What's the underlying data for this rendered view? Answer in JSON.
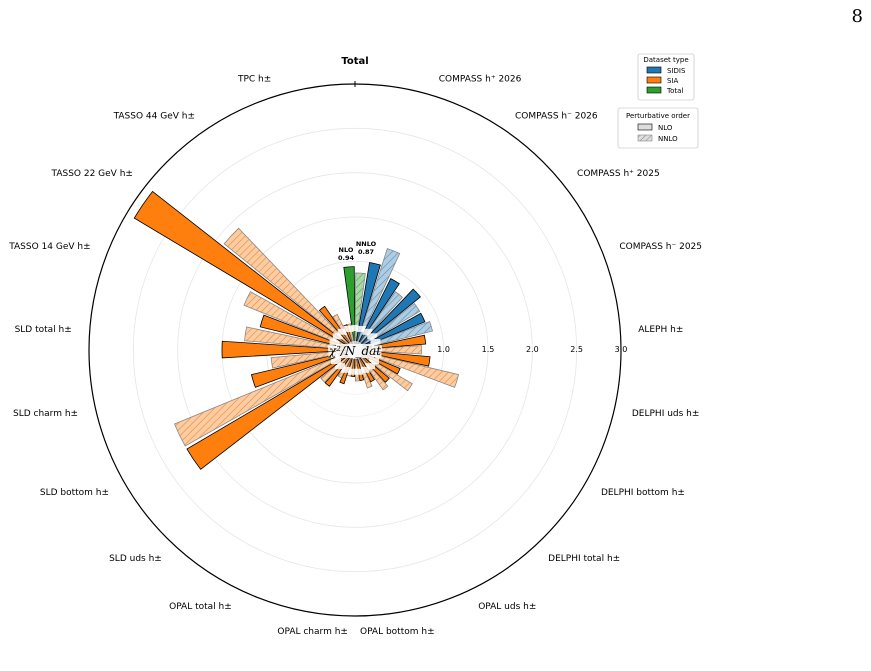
{
  "page_number": "8",
  "chart_data": {
    "type": "bar",
    "subtype": "polar-bar",
    "title": "Total",
    "center_label": "χ²/N_dat",
    "radial_ticks": [
      "1.0",
      "1.5",
      "2.0",
      "2.5",
      "3.0"
    ],
    "radial_tick_values": [
      1.0,
      1.5,
      2.0,
      2.5,
      3.0
    ],
    "rmax": 3.0,
    "categories": [
      "Total",
      "COMPASS h⁺ 2026",
      "COMPASS h⁻ 2026",
      "COMPASS h⁺ 2025",
      "COMPASS h⁻ 2025",
      "ALEPH h±",
      "DELPHI uds h±",
      "DELPHI bottom h±",
      "DELPHI total h±",
      "OPAL uds h±",
      "OPAL bottom h±",
      "OPAL charm h±",
      "OPAL total h±",
      "SLD uds h±",
      "SLD bottom h±",
      "SLD charm h±",
      "SLD total h±",
      "TASSO 14 GeV h±",
      "TASSO 22 GeV h±",
      "TASSO 44 GeV h±",
      "TPC h±"
    ],
    "dataset_type": [
      "Total",
      "SIDIS",
      "SIDIS",
      "SIDIS",
      "SIDIS",
      "SIA",
      "SIA",
      "SIA",
      "SIA",
      "SIA",
      "SIA",
      "SIA",
      "SIA",
      "SIA",
      "SIA",
      "SIA",
      "SIA",
      "SIA",
      "SIA",
      "SIA",
      "SIA"
    ],
    "series": [
      {
        "name": "NLO",
        "values": [
          0.94,
          1.0,
          0.9,
          0.95,
          0.85,
          0.8,
          0.85,
          0.55,
          0.5,
          0.4,
          0.35,
          0.3,
          0.4,
          0.5,
          2.2,
          1.2,
          1.5,
          1.1,
          2.9,
          0.6,
          0.3
        ]
      },
      {
        "name": "NNLO",
        "values": [
          0.87,
          1.2,
          0.8,
          0.85,
          0.9,
          0.75,
          1.2,
          0.75,
          0.55,
          0.45,
          0.35,
          0.3,
          0.35,
          0.5,
          2.2,
          0.95,
          1.25,
          1.35,
          1.9,
          0.45,
          0.3
        ]
      }
    ],
    "annotations": [
      {
        "label": "NLO",
        "value": "0.94"
      },
      {
        "label": "NNLO",
        "value": "0.87"
      }
    ],
    "legend_dataset": {
      "title": "Dataset type",
      "entries": [
        {
          "name": "SIDIS",
          "color": "#1f77b4"
        },
        {
          "name": "SIA",
          "color": "#ff7f0e"
        },
        {
          "name": "Total",
          "color": "#2ca02c"
        }
      ],
      "placement": "top-right"
    },
    "legend_order": {
      "title": "Perturbative order",
      "entries": [
        {
          "name": "NLO",
          "style": "solid"
        },
        {
          "name": "NNLO",
          "style": "hatched"
        }
      ],
      "placement": "top-right"
    },
    "grid": true
  }
}
